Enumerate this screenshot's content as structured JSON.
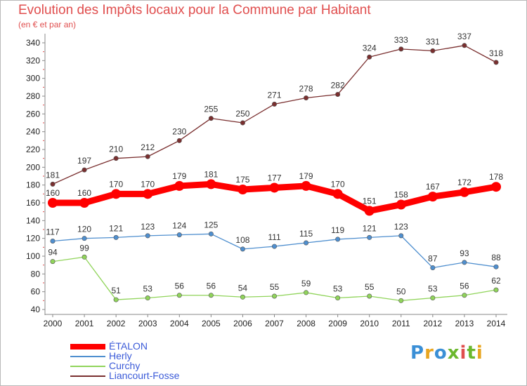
{
  "header": {
    "title": "Evolution des Impôts locaux pour la Commune par Habitant",
    "subtitle": "(en € et par an)"
  },
  "logo": {
    "text": "Proxiti",
    "colors": [
      "#3a8fd6",
      "#e8a520",
      "#3a8fd6",
      "#6bb82e",
      "#e04e4e",
      "#6bb82e",
      "#e8a520"
    ]
  },
  "chart_data": {
    "type": "line",
    "x": [
      "2000",
      "2001",
      "2002",
      "2003",
      "2004",
      "2005",
      "2006",
      "2007",
      "2008",
      "2009",
      "2010",
      "2011",
      "2012",
      "2013",
      "2014"
    ],
    "ylim": [
      40,
      340
    ],
    "yticks": [
      40,
      60,
      80,
      100,
      120,
      140,
      160,
      180,
      200,
      220,
      240,
      260,
      280,
      300,
      320,
      340
    ],
    "grid": false,
    "legend_position": "bottom-left",
    "series": [
      {
        "name": "ÉTALON",
        "color": "#ff0000",
        "values": [
          160,
          160,
          170,
          170,
          179,
          181,
          175,
          177,
          179,
          170,
          151,
          158,
          167,
          172,
          178
        ]
      },
      {
        "name": "Herly",
        "color": "#4f8fcf",
        "values": [
          117,
          120,
          121,
          123,
          124,
          125,
          108,
          111,
          115,
          119,
          121,
          123,
          87,
          93,
          88
        ]
      },
      {
        "name": "Curchy",
        "color": "#90d45a",
        "values": [
          94,
          99,
          51,
          53,
          56,
          56,
          54,
          55,
          59,
          53,
          55,
          50,
          53,
          56,
          62
        ]
      },
      {
        "name": "Liancourt-Fosse",
        "color": "#7a2f2f",
        "values": [
          181,
          197,
          210,
          212,
          230,
          255,
          250,
          271,
          278,
          282,
          324,
          333,
          331,
          337,
          318
        ]
      }
    ]
  }
}
